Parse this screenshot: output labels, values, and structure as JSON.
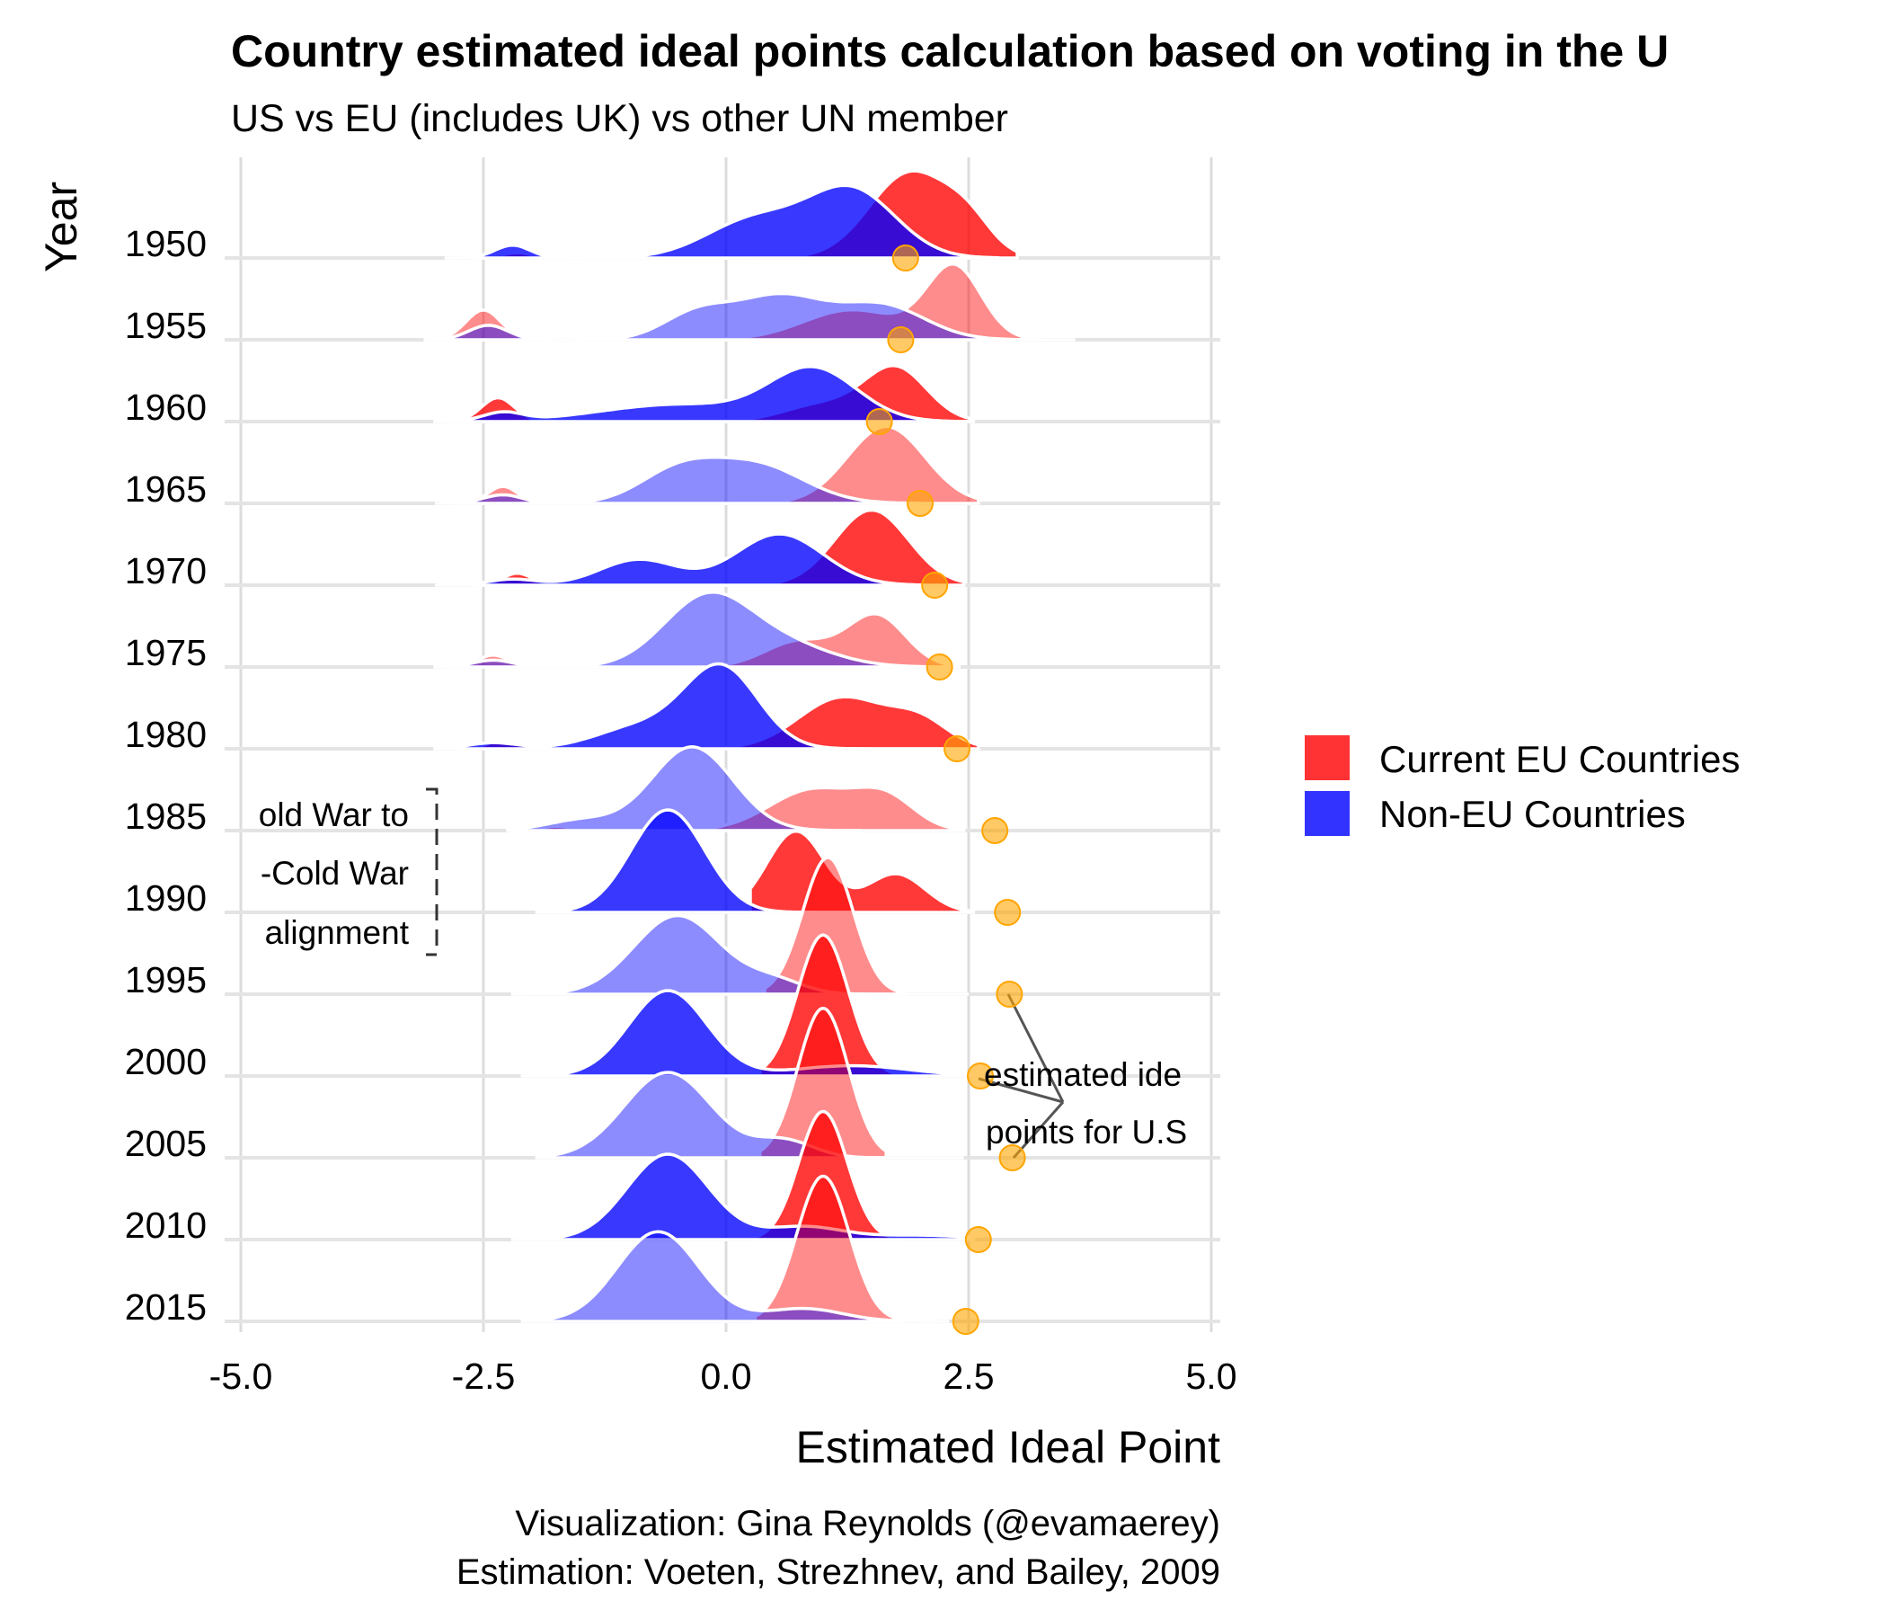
{
  "chart_data": {
    "type": "ridgeline",
    "title": "Country estimated ideal points calculation based on voting in the U",
    "subtitle": "US vs EU (includes UK) vs other UN member",
    "xlabel": "Estimated Ideal Point",
    "ylabel": "Year",
    "xlim": [
      -5,
      5
    ],
    "x_ticks": [
      "-5.0",
      "-2.5",
      "0.0",
      "2.5",
      "5.0"
    ],
    "x_tick_values": [
      -5,
      -2.5,
      0,
      2.5,
      5
    ],
    "years": [
      1950,
      1955,
      1960,
      1965,
      1970,
      1975,
      1980,
      1985,
      1990,
      1995,
      2000,
      2005,
      2010,
      2015
    ],
    "grid": true,
    "legend_position": "right",
    "series": [
      {
        "name": "Current EU Countries",
        "color": "#ff0000",
        "ridges": [
          {
            "year": 1950,
            "peaks": [
              [
                -2.15,
                0.15,
                0.06
              ],
              [
                1.9,
                0.42,
                1.0
              ],
              [
                2.5,
                0.25,
                0.3
              ]
            ],
            "range": [
              -2.6,
              3.0
            ]
          },
          {
            "year": 1955,
            "peaks": [
              [
                -2.5,
                0.18,
                0.35
              ],
              [
                2.35,
                0.28,
                0.85
              ],
              [
                1.3,
                0.5,
                0.35
              ]
            ],
            "range": [
              -3.1,
              3.05
            ]
          },
          {
            "year": 1960,
            "peaks": [
              [
                -2.35,
                0.17,
                0.28
              ],
              [
                1.75,
                0.32,
                0.62
              ],
              [
                1.0,
                0.4,
                0.2
              ]
            ],
            "range": [
              -2.9,
              2.55
            ]
          },
          {
            "year": 1965,
            "peaks": [
              [
                -2.3,
                0.15,
                0.2
              ],
              [
                1.65,
                0.4,
                0.9
              ]
            ],
            "range": [
              -2.8,
              2.6
            ]
          },
          {
            "year": 1970,
            "peaks": [
              [
                -2.15,
                0.15,
                0.14
              ],
              [
                1.5,
                0.38,
                0.88
              ]
            ],
            "range": [
              -2.6,
              2.45
            ]
          },
          {
            "year": 1975,
            "peaks": [
              [
                -2.4,
                0.15,
                0.14
              ],
              [
                1.55,
                0.3,
                0.6
              ],
              [
                0.75,
                0.35,
                0.3
              ]
            ],
            "range": [
              -2.9,
              2.4
            ]
          },
          {
            "year": 1980,
            "peaks": [
              [
                -2.3,
                0.15,
                0.1
              ],
              [
                1.2,
                0.45,
                0.6
              ],
              [
                2.0,
                0.3,
                0.3
              ]
            ],
            "range": [
              -2.8,
              2.6
            ]
          },
          {
            "year": 1985,
            "peaks": [
              [
                -1.75,
                0.15,
                0.05
              ],
              [
                0.9,
                0.45,
                0.48
              ],
              [
                1.65,
                0.3,
                0.35
              ]
            ],
            "range": [
              -2.2,
              2.45
            ]
          },
          {
            "year": 1990,
            "peaks": [
              [
                0.72,
                0.3,
                0.95
              ],
              [
                1.75,
                0.3,
                0.45
              ]
            ],
            "range": [
              0.25,
              2.55
            ]
          },
          {
            "year": 1995,
            "peaks": [
              [
                1.05,
                0.26,
                1.6
              ]
            ],
            "range": [
              0.4,
              1.85
            ]
          },
          {
            "year": 2000,
            "peaks": [
              [
                1.0,
                0.26,
                1.65
              ]
            ],
            "range": [
              0.35,
              1.75
            ]
          },
          {
            "year": 2005,
            "peaks": [
              [
                1.0,
                0.26,
                1.75
              ]
            ],
            "range": [
              0.35,
              1.65
            ]
          },
          {
            "year": 2010,
            "peaks": [
              [
                1.0,
                0.25,
                1.5
              ]
            ],
            "range": [
              0.3,
              1.85
            ]
          },
          {
            "year": 2015,
            "peaks": [
              [
                1.0,
                0.27,
                1.7
              ]
            ],
            "range": [
              0.3,
              1.85
            ]
          }
        ]
      },
      {
        "name": "Non-EU Countries",
        "color": "#0000ff",
        "ridges": [
          {
            "year": 1950,
            "peaks": [
              [
                -2.2,
                0.18,
                0.15
              ],
              [
                0.3,
                0.5,
                0.45
              ],
              [
                1.3,
                0.45,
                0.78
              ]
            ],
            "range": [
              -2.9,
              2.8
            ]
          },
          {
            "year": 1955,
            "peaks": [
              [
                -2.45,
                0.2,
                0.17
              ],
              [
                -0.3,
                0.35,
                0.3
              ],
              [
                0.55,
                0.45,
                0.5
              ],
              [
                1.6,
                0.45,
                0.4
              ]
            ],
            "range": [
              -3.1,
              3.6
            ]
          },
          {
            "year": 1960,
            "peaks": [
              [
                -2.3,
                0.2,
                0.1
              ],
              [
                -0.5,
                0.8,
                0.2
              ],
              [
                0.9,
                0.45,
                0.6
              ]
            ],
            "range": [
              -3.0,
              2.5
            ]
          },
          {
            "year": 1965,
            "peaks": [
              [
                -2.3,
                0.2,
                0.1
              ],
              [
                -0.5,
                0.4,
                0.35
              ],
              [
                0.3,
                0.5,
                0.45
              ]
            ],
            "range": [
              -3.0,
              2.0
            ]
          },
          {
            "year": 1970,
            "peaks": [
              [
                -2.2,
                0.25,
                0.07
              ],
              [
                -0.9,
                0.4,
                0.3
              ],
              [
                0.55,
                0.45,
                0.6
              ]
            ],
            "range": [
              -3.0,
              2.0
            ]
          },
          {
            "year": 1975,
            "peaks": [
              [
                -2.4,
                0.2,
                0.08
              ],
              [
                -0.2,
                0.45,
                0.8
              ],
              [
                0.6,
                0.5,
                0.25
              ]
            ],
            "range": [
              -3.0,
              2.3
            ]
          },
          {
            "year": 1980,
            "peaks": [
              [
                -2.4,
                0.25,
                0.07
              ],
              [
                -0.05,
                0.38,
                0.95
              ],
              [
                -0.9,
                0.45,
                0.25
              ]
            ],
            "range": [
              -3.0,
              2.3
            ]
          },
          {
            "year": 1985,
            "peaks": [
              [
                -0.35,
                0.42,
                0.98
              ],
              [
                -1.5,
                0.35,
                0.12
              ]
            ],
            "range": [
              -2.25,
              1.4
            ]
          },
          {
            "year": 1990,
            "peaks": [
              [
                -0.6,
                0.38,
                1.2
              ]
            ],
            "range": [
              -1.95,
              1.3
            ]
          },
          {
            "year": 1995,
            "peaks": [
              [
                -0.5,
                0.45,
                0.92
              ],
              [
                0.5,
                0.3,
                0.15
              ]
            ],
            "range": [
              -2.2,
              2.5
            ]
          },
          {
            "year": 2000,
            "peaks": [
              [
                -0.6,
                0.4,
                1.0
              ],
              [
                1.3,
                0.6,
                0.12
              ]
            ],
            "range": [
              -2.1,
              3.8
            ]
          },
          {
            "year": 2005,
            "peaks": [
              [
                -0.6,
                0.45,
                1.0
              ],
              [
                0.6,
                0.3,
                0.2
              ]
            ],
            "range": [
              -1.95,
              2.45
            ]
          },
          {
            "year": 2010,
            "peaks": [
              [
                -0.6,
                0.42,
                1.0
              ],
              [
                0.8,
                0.4,
                0.15
              ],
              [
                2.0,
                0.5,
                0.05
              ]
            ],
            "range": [
              -2.2,
              2.55
            ]
          },
          {
            "year": 2015,
            "peaks": [
              [
                -0.7,
                0.42,
                1.05
              ],
              [
                0.8,
                0.4,
                0.15
              ]
            ],
            "range": [
              -2.1,
              2.3
            ]
          }
        ]
      }
    ],
    "us_points": {
      "name": "estimated ideal points for U.S",
      "color": "#ffa500",
      "values": [
        {
          "year": 1950,
          "x": 1.85
        },
        {
          "year": 1955,
          "x": 1.8
        },
        {
          "year": 1960,
          "x": 1.58
        },
        {
          "year": 1965,
          "x": 2.0
        },
        {
          "year": 1970,
          "x": 2.15
        },
        {
          "year": 1975,
          "x": 2.2
        },
        {
          "year": 1980,
          "x": 2.38
        },
        {
          "year": 1985,
          "x": 2.77
        },
        {
          "year": 1990,
          "x": 2.9
        },
        {
          "year": 1995,
          "x": 2.92
        },
        {
          "year": 2000,
          "x": 2.62
        },
        {
          "year": 2005,
          "x": 2.95
        },
        {
          "year": 2010,
          "x": 2.6
        },
        {
          "year": 2015,
          "x": 2.47
        }
      ]
    },
    "legend": [
      "Current EU Countries",
      "Non-EU Countries"
    ],
    "annotations": {
      "cold_war_lines": [
        "old War to",
        "-Cold War",
        "alignment"
      ],
      "us_lines": [
        "estimated ide",
        "points for U.S"
      ]
    },
    "caption": [
      "Visualization: Gina Reynolds (@evamaerey)",
      "Estimation: Voeten, Strezhnev, and Bailey, 2009"
    ]
  }
}
